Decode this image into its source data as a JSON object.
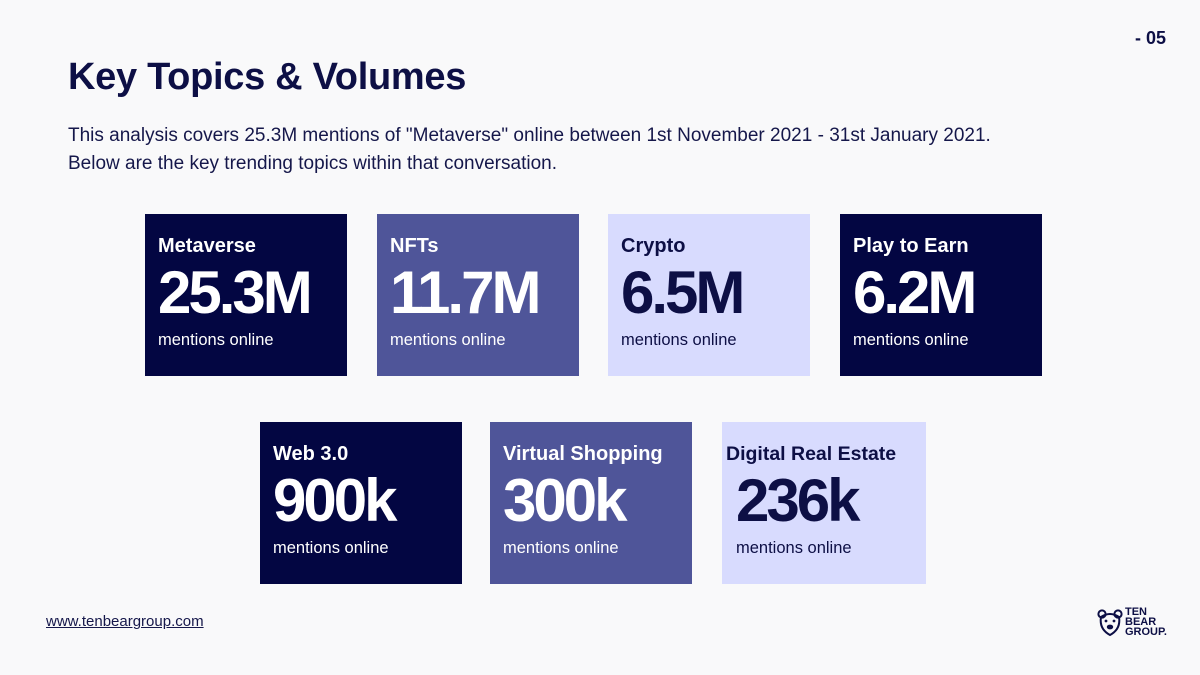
{
  "page_number": "- 05",
  "title": "Key Topics & Volumes",
  "intro": {
    "line1": "This analysis covers 25.3M mentions of \"Metaverse\" online between 1st November 2021 - 31st January 2021.",
    "line2": "Below are the key trending topics within that conversation."
  },
  "cards": [
    {
      "label": "Metaverse",
      "value": "25.3M",
      "sub": "mentions online",
      "color": "#030642"
    },
    {
      "label": "NFTs",
      "value": "11.7M",
      "sub": "mentions online",
      "color": "#4f5599"
    },
    {
      "label": "Crypto",
      "value": "6.5M",
      "sub": "mentions online",
      "color": "#d8dbfe"
    },
    {
      "label": "Play to Earn",
      "value": "6.2M",
      "sub": "mentions online",
      "color": "#030642"
    },
    {
      "label": "Web 3.0",
      "value": "900k",
      "sub": "mentions online",
      "color": "#030642"
    },
    {
      "label": "Virtual Shopping",
      "value": "300k",
      "sub": "mentions online",
      "color": "#4f5599"
    },
    {
      "label": "Digital Real Estate",
      "value": "236k",
      "sub": "mentions online",
      "color": "#d8dbfe"
    }
  ],
  "footer": {
    "url": "www.tenbeargroup.com",
    "logo_lines": [
      "TEN",
      "BEAR",
      "GROUP."
    ],
    "logo_icon": "bear-head-icon"
  }
}
